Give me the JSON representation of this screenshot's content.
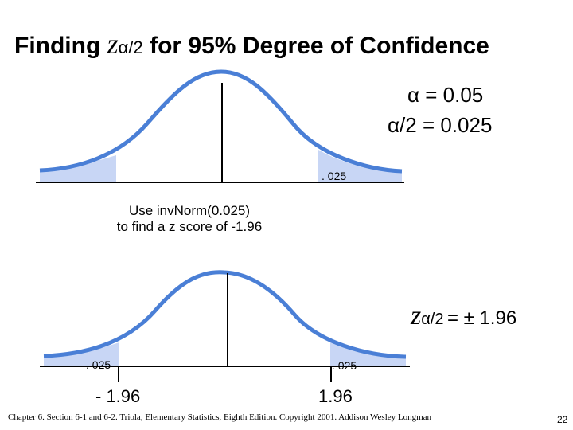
{
  "title": {
    "prefix": "Finding",
    "z_symbol": "z",
    "z_subscript": "α/2",
    "suffix": "for 95% Degree of Confidence"
  },
  "alpha_eq": "α = 0.05",
  "half_alpha_eq": "α/2 = 0.025",
  "top_curve": {
    "tail_area_label": ". 025"
  },
  "instruction": {
    "line1": "Use invNorm(0.025)",
    "line2": "to find a z score of -1.96"
  },
  "bottom_curve": {
    "left_tail_label": ". 025",
    "right_tail_label": ". 025"
  },
  "z_result": {
    "z_symbol": "z",
    "z_subscript": "α/2",
    "value": "= ± 1.96"
  },
  "critical_values": {
    "left": "- 1.96",
    "right": "1.96"
  },
  "footer": "Chapter 6.  Section 6-1 and 6-2.  Triola, Elementary Statistics, Eighth Edition. Copyright  2001.  Addison Wesley Longman",
  "page_number": "22",
  "colors": {
    "curve": "#4a7fd6",
    "tail_fill": "#c8d6f5"
  }
}
